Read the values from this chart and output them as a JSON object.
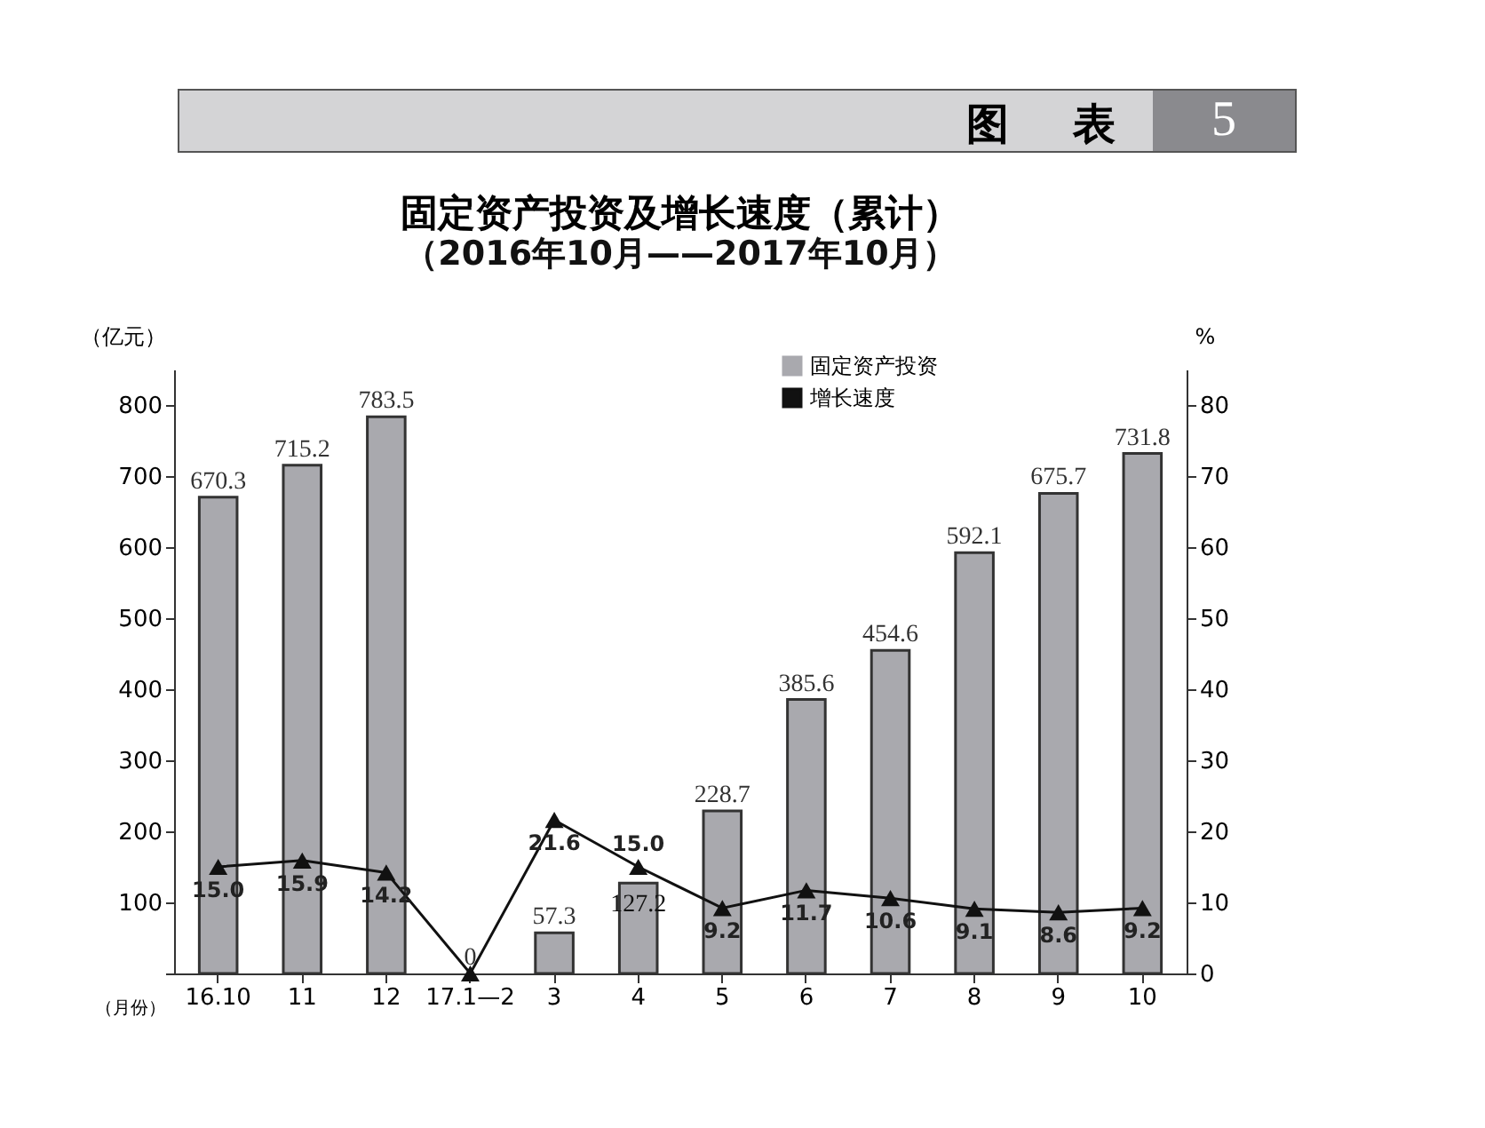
{
  "chart_data": {
    "type": "bar",
    "title": "固定资产投资及增长速度（累计）",
    "subtitle": "（2016年10月——2017年10月）",
    "annotations": [
      "图　表",
      "5"
    ],
    "xlabel": "（月份）",
    "ylabel": "（亿元）",
    "y2label": "%",
    "categories": [
      "16.10",
      "11",
      "12",
      "17.1—2",
      "3",
      "4",
      "5",
      "6",
      "7",
      "8",
      "9",
      "10"
    ],
    "series": [
      {
        "name": "固定资产投资",
        "color": "#a9a9ae",
        "values": [
          670.3,
          715.2,
          783.5,
          0,
          57.3,
          127.2,
          228.7,
          385.6,
          454.6,
          592.1,
          675.7,
          731.8
        ],
        "value_labels": [
          "670.3",
          "715.2",
          "783.5",
          "0",
          "57.3",
          "127.2",
          "228.7",
          "385.6",
          "454.6",
          "592.1",
          "675.7",
          "731.8"
        ]
      },
      {
        "name": "增长速度",
        "type": "line",
        "axis": "y2",
        "color": "#111111",
        "marker": "triangle",
        "values": [
          15.0,
          15.9,
          14.2,
          0,
          21.6,
          15.0,
          9.2,
          11.7,
          10.6,
          9.1,
          8.6,
          9.2
        ],
        "value_labels": [
          "15.0",
          "15.9",
          "14.2",
          null,
          "21.6",
          "15.0",
          "9.2",
          "11.7",
          "10.6",
          "9.1",
          "8.6",
          "9.2"
        ]
      }
    ],
    "ylim": [
      0,
      850
    ],
    "yticks": [
      {
        "value": 0,
        "label": null
      },
      100,
      200,
      300,
      400,
      500,
      600,
      700,
      800
    ],
    "y2lim": [
      0,
      85
    ],
    "y2ticks": [
      0,
      10,
      20,
      30,
      40,
      50,
      60,
      70,
      80
    ],
    "grid": false,
    "legend": "top right"
  }
}
